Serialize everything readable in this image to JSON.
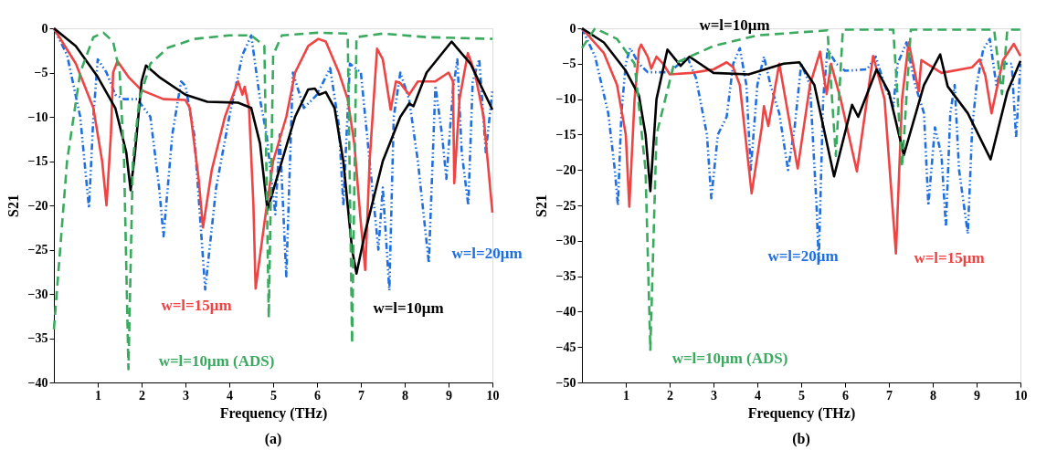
{
  "chart_data": [
    {
      "type": "line",
      "xlabel": "Frequency (THz)",
      "ylabel": "S21",
      "annotations": [
        "(a)"
      ],
      "xlim": [
        0,
        10
      ],
      "xticks": [
        1,
        2,
        3,
        4,
        5,
        6,
        7,
        8,
        9,
        10
      ],
      "ylim": [
        -40,
        0
      ],
      "yticks": [
        -40,
        -35,
        -30,
        -25,
        -20,
        -15,
        -10,
        -5,
        0
      ],
      "grid": false,
      "legend": false,
      "marker": "none",
      "series": [
        {
          "name": "w=l=20μm",
          "color": "#1f6fe0",
          "line_style": "dotted",
          "x": [
            0,
            0.3,
            0.6,
            0.8,
            0.9,
            1,
            1.2,
            1.4,
            1.6,
            1.9,
            2.2,
            2.4,
            2.5,
            2.7,
            2.9,
            3,
            3.2,
            3.45,
            3.7,
            4,
            4.3,
            4.5,
            4.7,
            4.85,
            5.05,
            5.15,
            5.3,
            5.45,
            5.7,
            6,
            6.3,
            6.5,
            6.6,
            6.75,
            7,
            7.2,
            7.4,
            7.5,
            7.65,
            7.75,
            7.9,
            8.1,
            8.3,
            8.55,
            8.7,
            8.85,
            8.95,
            9.1,
            9.2,
            9.3,
            9.45,
            9.55,
            9.7,
            9.85,
            10
          ],
          "values": [
            0,
            -3,
            -10,
            -20.3,
            -10,
            -3.5,
            -5,
            -7.5,
            -8,
            -8,
            -10,
            -18,
            -23.5,
            -12,
            -6,
            -6.5,
            -12,
            -29.5,
            -18,
            -10,
            -3,
            -0.8,
            -8,
            -12,
            -21,
            -12,
            -28,
            -5,
            -9,
            -7.5,
            -4.5,
            -11,
            -20,
            -4,
            -5,
            -15,
            -25,
            -18,
            -29.6,
            -10,
            -5,
            -8,
            -15,
            -26.5,
            -6.5,
            -12,
            -17,
            -7,
            -3.5,
            -14,
            -20,
            -6,
            -3.5,
            -14,
            -7
          ]
        },
        {
          "name": "w=l=15μm",
          "color": "#ee4444",
          "line_style": "solid",
          "x": [
            0,
            0.5,
            0.9,
            1.1,
            1.2,
            1.3,
            1.35,
            1.45,
            1.7,
            2,
            2.5,
            3,
            3.1,
            3.3,
            3.4,
            3.6,
            3.9,
            4.2,
            4.3,
            4.35,
            4.45,
            4.55,
            4.6,
            4.8,
            5,
            5.3,
            5.5,
            5.8,
            6.03,
            6.2,
            6.5,
            6.7,
            6.85,
            7,
            7.1,
            7.2,
            7.37,
            7.5,
            7.68,
            7.8,
            7.9,
            8.1,
            8.3,
            8.7,
            9,
            9.1,
            9.13,
            9.25,
            9.44,
            9.6,
            9.8,
            10
          ],
          "values": [
            0,
            -4,
            -9,
            -15,
            -20,
            -12,
            -5,
            -3.7,
            -5.5,
            -7,
            -8,
            -8.1,
            -9,
            -17,
            -22.5,
            -16,
            -10,
            -6,
            -7.5,
            -6.6,
            -9,
            -20,
            -29.4,
            -22,
            -15,
            -10,
            -5,
            -2,
            -1.2,
            -1.5,
            -5,
            -8,
            -13,
            -22,
            -27.3,
            -15,
            -2.3,
            -3.5,
            -9.2,
            -6,
            -6.2,
            -7.5,
            -6,
            -6,
            -5,
            -6,
            -17.5,
            -8,
            -2.8,
            -5,
            -10,
            -20.8
          ]
        },
        {
          "name": "w=l=10μm",
          "color": "#000000",
          "line_style": "solid",
          "x": [
            0,
            0.5,
            1,
            1.4,
            1.65,
            1.75,
            1.85,
            2,
            2.1,
            2.4,
            3,
            3.5,
            4.2,
            4.5,
            4.7,
            4.87,
            5.2,
            5.5,
            5.8,
            5.95,
            6.05,
            6.2,
            6.4,
            6.6,
            6.8,
            6.9,
            7.1,
            7.5,
            7.9,
            8.1,
            8.2,
            8.5,
            9.07,
            9.5,
            10
          ],
          "values": [
            0,
            -2,
            -5.5,
            -9,
            -14,
            -18.3,
            -14,
            -6,
            -4.2,
            -5.5,
            -7.5,
            -8.3,
            -8.4,
            -9,
            -13,
            -20.5,
            -15,
            -10,
            -6.9,
            -6.8,
            -7.5,
            -7.2,
            -9,
            -15,
            -25,
            -27.7,
            -23,
            -15,
            -10,
            -8.5,
            -8.8,
            -5,
            -1.5,
            -4,
            -9.2
          ]
        },
        {
          "name": "w=l=10μm (ADS)",
          "color": "#3aaa5f",
          "line_style": "dashed",
          "x": [
            0,
            0.3,
            0.6,
            0.9,
            1.13,
            1.35,
            1.5,
            1.6,
            1.7,
            1.8,
            1.95,
            2.2,
            2.6,
            3.2,
            4,
            4.5,
            4.8,
            4.9,
            5,
            5.2,
            6,
            6.7,
            6.8,
            6.9,
            7.5,
            8.5,
            10
          ],
          "values": [
            -34,
            -15,
            -5,
            -1,
            -0.5,
            -1.5,
            -5,
            -15,
            -38.5,
            -15,
            -8,
            -4,
            -2.2,
            -1.2,
            -0.8,
            -0.8,
            -2,
            -32.7,
            -3,
            -0.8,
            -0.5,
            -0.6,
            -35.6,
            -1,
            -0.6,
            -1,
            -1.2
          ]
        }
      ]
    },
    {
      "type": "line",
      "xlabel": "Frequency (THz)",
      "ylabel": "S21",
      "annotations": [
        "(b)"
      ],
      "xlim": [
        0,
        10
      ],
      "xticks": [
        1,
        2,
        3,
        4,
        5,
        6,
        7,
        8,
        9,
        10
      ],
      "ylim": [
        -50,
        0
      ],
      "yticks": [
        -50,
        -45,
        -40,
        -35,
        -30,
        -25,
        -20,
        -15,
        -10,
        -5,
        0
      ],
      "grid": false,
      "legend": false,
      "marker": "none",
      "series": [
        {
          "name": "w=l=20μm",
          "color": "#1f6fe0",
          "line_style": "dotted",
          "x": [
            0,
            0.3,
            0.6,
            0.75,
            0.82,
            0.9,
            1,
            1.1,
            1.3,
            1.5,
            2,
            2.4,
            2.6,
            2.85,
            2.95,
            3.1,
            3.3,
            3.45,
            3.6,
            3.75,
            3.85,
            4,
            4.15,
            4.3,
            4.5,
            4.7,
            4.85,
            5,
            5.2,
            5.35,
            5.4,
            5.5,
            5.6,
            5.8,
            6,
            6.5,
            6.7,
            6.9,
            7.1,
            7.2,
            7.4,
            7.6,
            7.8,
            7.9,
            8.05,
            8.2,
            8.3,
            8.4,
            8.5,
            8.6,
            8.8,
            8.9,
            9,
            9.15,
            9.3,
            9.45,
            9.6,
            9.8,
            9.9,
            10
          ],
          "values": [
            0,
            -4,
            -12,
            -20,
            -25,
            -12,
            -5,
            -2.8,
            -5,
            -6.2,
            -6.2,
            -4,
            -7,
            -15,
            -24,
            -15,
            -12.5,
            -5,
            -2.8,
            -8,
            -20,
            -8,
            -4,
            -8,
            -12,
            -20,
            -14,
            -5,
            -8,
            -25,
            -33,
            -10,
            -3,
            -5,
            -6,
            -5.8,
            -4,
            -8,
            -11,
            -5,
            -2,
            -8,
            -12,
            -25,
            -14,
            -18,
            -28,
            -12,
            -8,
            -20,
            -29,
            -14,
            -8,
            -3,
            -1.5,
            -8,
            -5,
            -5,
            -15.5,
            -5
          ]
        },
        {
          "name": "w=l=15μm",
          "color": "#ee4444",
          "line_style": "solid",
          "x": [
            0,
            0.5,
            0.8,
            1,
            1.08,
            1.2,
            1.3,
            1.35,
            1.5,
            1.58,
            1.7,
            1.85,
            2,
            2.5,
            3,
            3.3,
            3.45,
            3.6,
            3.87,
            4.1,
            4.15,
            4.25,
            4.5,
            4.92,
            5.2,
            5.43,
            5.58,
            5.68,
            5.9,
            6.27,
            6.64,
            6.9,
            7.16,
            7.3,
            7.45,
            7.68,
            7.74,
            8.2,
            8.9,
            9.07,
            9.2,
            9.34,
            9.6,
            9.85,
            10
          ],
          "values": [
            0,
            -3.5,
            -8,
            -15,
            -25.2,
            -10,
            -3,
            -2.3,
            -4,
            -5.7,
            -4,
            -5,
            -6.5,
            -6.3,
            -5.8,
            -4.8,
            -5.5,
            -8,
            -23.3,
            -14,
            -11,
            -13.8,
            -5,
            -19.8,
            -8,
            -3.3,
            -9.3,
            -5,
            -10,
            -20.2,
            -3.9,
            -10,
            -31.8,
            -10,
            -2,
            -8.9,
            -4.5,
            -6.3,
            -5.5,
            -4.4,
            -6.7,
            -12,
            -4.5,
            -2.2,
            -3.9
          ]
        },
        {
          "name": "w=l=10μm",
          "color": "#000000",
          "line_style": "solid",
          "x": [
            0,
            0.5,
            1,
            1.3,
            1.45,
            1.56,
            1.7,
            1.95,
            2.25,
            2.45,
            3,
            3.8,
            4.6,
            4.96,
            5.3,
            5.75,
            6.16,
            6.3,
            6.72,
            7,
            7.34,
            7.8,
            8.17,
            8.34,
            8.8,
            9.32,
            9.7,
            10
          ],
          "values": [
            0,
            -2,
            -6,
            -9.5,
            -15,
            -23,
            -10,
            -3,
            -5.3,
            -4,
            -6.3,
            -6.5,
            -5,
            -4.8,
            -8,
            -20.9,
            -10.8,
            -12.5,
            -5.8,
            -9,
            -17.9,
            -8,
            -3.7,
            -8.2,
            -12,
            -18.5,
            -9,
            -4.6
          ]
        },
        {
          "name": "w=l=10μm (ADS)",
          "color": "#3aaa5f",
          "line_style": "dashed",
          "x": [
            0,
            0.3,
            0.8,
            1.2,
            1.45,
            1.56,
            1.7,
            2.1,
            3,
            4,
            5.6,
            5.79,
            5.95,
            7.1,
            7.3,
            7.5,
            9.4,
            9.58,
            9.7,
            10
          ],
          "values": [
            -2.8,
            0,
            -1.5,
            -5,
            -20,
            -45.4,
            -15,
            -5,
            -2.5,
            -1,
            -0.3,
            -18,
            -0.2,
            -0.2,
            -19.6,
            -0.2,
            -0.2,
            -9.3,
            -0.2,
            -0.2
          ]
        }
      ]
    }
  ]
}
